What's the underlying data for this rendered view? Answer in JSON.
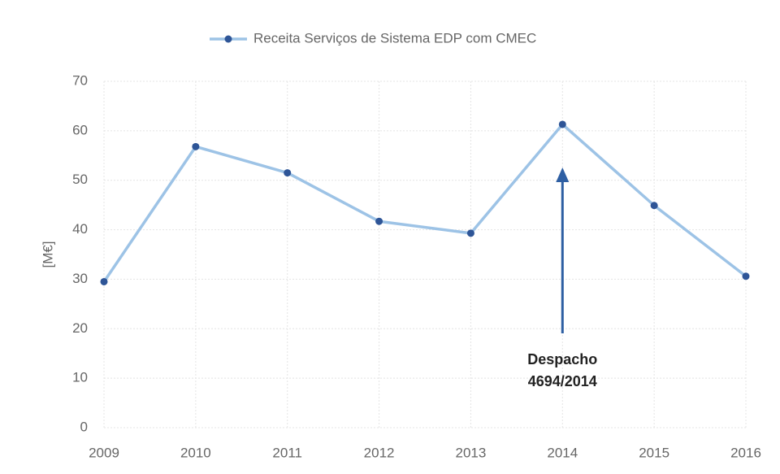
{
  "chart_data": {
    "type": "line",
    "categories": [
      "2009",
      "2010",
      "2011",
      "2012",
      "2013",
      "2014",
      "2015",
      "2016"
    ],
    "series": [
      {
        "name": "Receita Serviços de Sistema EDP com CMEC",
        "color": "#9dc3e6",
        "marker_color": "#2e5597",
        "values": [
          29.5,
          56.8,
          51.5,
          41.7,
          39.3,
          61.3,
          44.9,
          30.6
        ]
      }
    ],
    "ylabel": "[M€]",
    "ylim": [
      0,
      70
    ],
    "yticks": [
      0,
      10,
      20,
      30,
      40,
      50,
      60,
      70
    ],
    "grid": true,
    "annotation": {
      "lines": [
        "Despacho",
        "4694/2014"
      ],
      "category": "2014",
      "color": "#2e5fa3"
    }
  }
}
